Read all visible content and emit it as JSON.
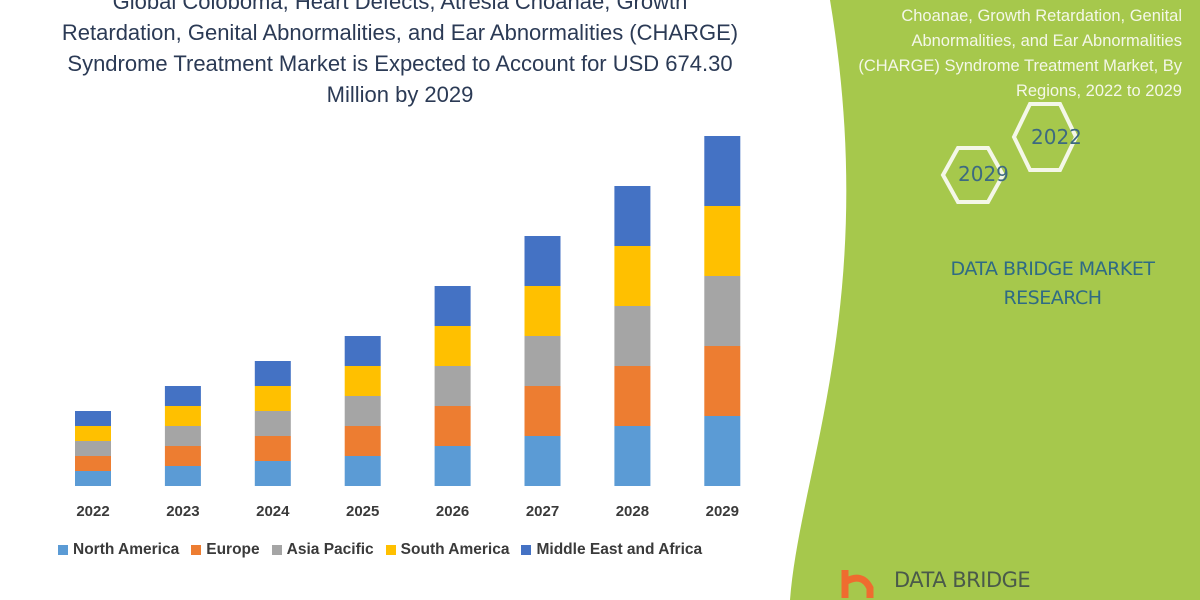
{
  "title_lines": [
    "Global Coloboma, Heart Defects, Atresia Choanae, Growth",
    "Retardation, Genital Abnormalities, and Ear Abnormalities (CHARGE)",
    "Syndrome Treatment Market is Expected to Account for USD 674.30",
    "Million by 2029"
  ],
  "side_title_lines": [
    "Choanae, Growth Retardation, Genital",
    "Abnormalities, and Ear Abnormalities",
    "(CHARGE) Syndrome Treatment Market, By",
    "Regions, 2022 to 2029"
  ],
  "hexagons": {
    "start": "2022",
    "end": "2029"
  },
  "brand": {
    "line1": "DATA BRIDGE MARKET",
    "line2": "RESEARCH",
    "logo_text": "DATA BRIDGE"
  },
  "colors": {
    "green_panel": "#a6c84c",
    "text_dark": "#2b3a55",
    "brand_text": "#2f6b84"
  },
  "chart_data": {
    "type": "bar",
    "stacked": true,
    "categories": [
      "2022",
      "2023",
      "2024",
      "2025",
      "2026",
      "2027",
      "2028",
      "2029"
    ],
    "series": [
      {
        "name": "North America",
        "color": "#5b9bd5",
        "values": [
          15,
          20,
          25,
          30,
          40,
          50,
          60,
          70
        ]
      },
      {
        "name": "Europe",
        "color": "#ed7d31",
        "values": [
          15,
          20,
          25,
          30,
          40,
          50,
          60,
          70
        ]
      },
      {
        "name": "Asia Pacific",
        "color": "#a5a5a5",
        "values": [
          15,
          20,
          25,
          30,
          40,
          50,
          60,
          70
        ]
      },
      {
        "name": "South America",
        "color": "#ffc000",
        "values": [
          15,
          20,
          25,
          30,
          40,
          50,
          60,
          70
        ]
      },
      {
        "name": "Middle East and Africa",
        "color": "#4472c4",
        "values": [
          15,
          20,
          25,
          30,
          40,
          50,
          60,
          70
        ]
      }
    ],
    "y_axis_shown": false,
    "grid": false,
    "legend_placement": "bottom"
  }
}
